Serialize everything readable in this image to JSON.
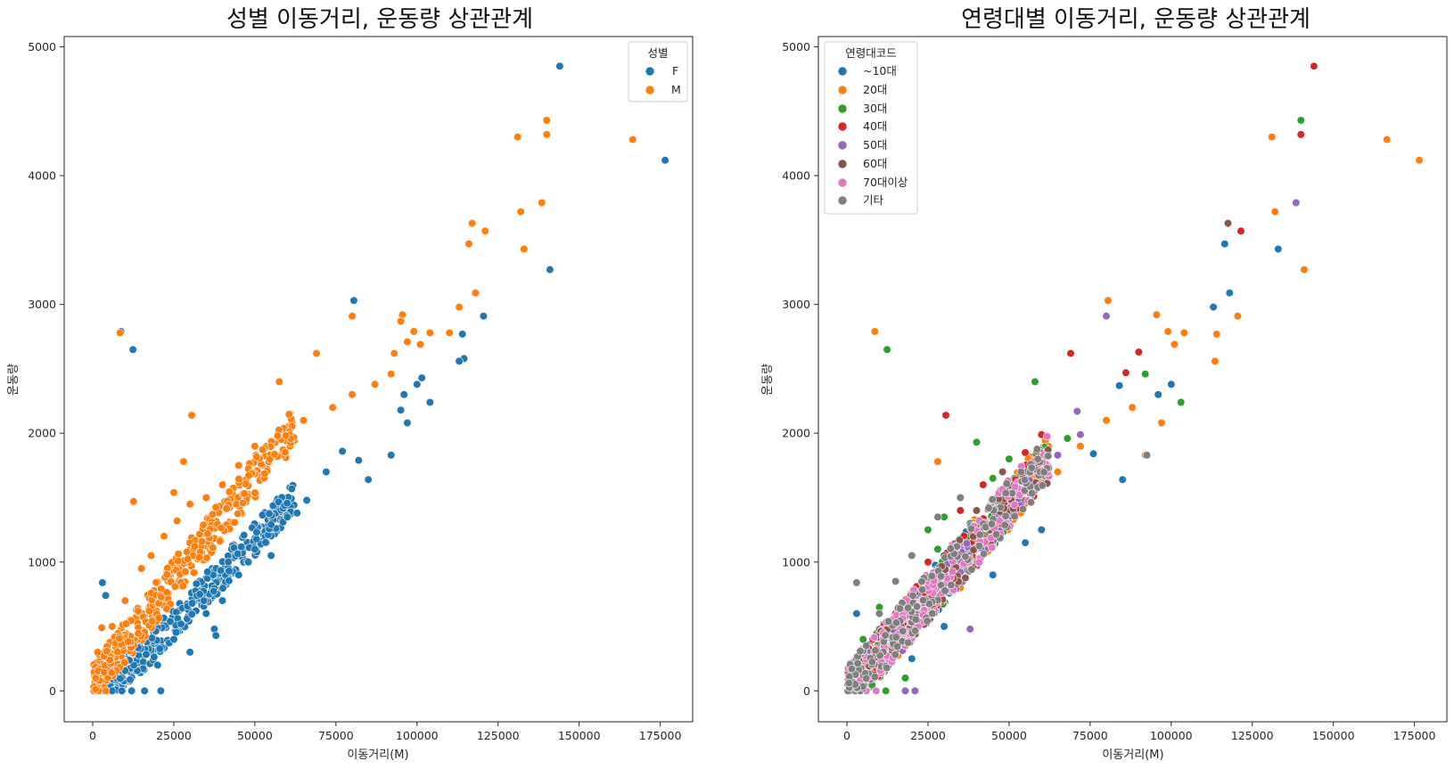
{
  "chart_data": [
    {
      "type": "scatter",
      "title": "성별 이동거리, 운동량 상관관계",
      "xlabel": "이동거리(M)",
      "ylabel": "운동량",
      "xlim": [
        -8800,
        185000
      ],
      "ylim": [
        -240,
        5080
      ],
      "xticks": [
        0,
        25000,
        50000,
        75000,
        100000,
        125000,
        150000,
        175000
      ],
      "yticks": [
        0,
        1000,
        2000,
        3000,
        4000,
        5000
      ],
      "grid": false,
      "legend": {
        "title": "성별",
        "placement": "top-right"
      },
      "series": [
        {
          "name": "F",
          "color": "#1f77b4",
          "points": [
            [
              144000,
              4850
            ],
            [
              176500,
              4120
            ],
            [
              141000,
              3270
            ],
            [
              118000,
              3090
            ],
            [
              114000,
              2770
            ],
            [
              114500,
              2580
            ],
            [
              113000,
              2560
            ],
            [
              120500,
              2910
            ],
            [
              80500,
              3030
            ],
            [
              8700,
              2790
            ],
            [
              12400,
              2650
            ],
            [
              101500,
              2430
            ],
            [
              104000,
              2240
            ],
            [
              100000,
              2380
            ],
            [
              96000,
              2300
            ],
            [
              95000,
              2180
            ],
            [
              97000,
              2080
            ],
            [
              92000,
              1830
            ],
            [
              85000,
              1640
            ],
            [
              82000,
              1790
            ],
            [
              77000,
              1860
            ],
            [
              72000,
              1700
            ],
            [
              66000,
              1480
            ],
            [
              63000,
              1380
            ],
            [
              60000,
              1350
            ],
            [
              55000,
              1290
            ],
            [
              12500,
              1470
            ],
            [
              3000,
              840
            ],
            [
              4000,
              740
            ],
            [
              16000,
              600
            ],
            [
              33000,
              750
            ],
            [
              37500,
              480
            ],
            [
              38000,
              430
            ],
            [
              16000,
              0
            ],
            [
              21000,
              0
            ],
            [
              12000,
              0
            ],
            [
              9000,
              0
            ],
            [
              6000,
              0
            ],
            [
              2000,
              0
            ],
            [
              500,
              150
            ],
            [
              30000,
              300
            ],
            [
              45000,
              900
            ],
            [
              50000,
              1100
            ],
            [
              40000,
              700
            ],
            [
              25000,
              400
            ],
            [
              20000,
              200
            ],
            [
              35000,
              600
            ],
            [
              55000,
              1050
            ],
            [
              48000,
              1000
            ]
          ]
        },
        {
          "name": "M",
          "color": "#ff7f0e",
          "points": [
            [
              131000,
              4300
            ],
            [
              140000,
              4430
            ],
            [
              140000,
              4320
            ],
            [
              166500,
              4280
            ],
            [
              138500,
              3790
            ],
            [
              132000,
              3720
            ],
            [
              133000,
              3430
            ],
            [
              117000,
              3630
            ],
            [
              116000,
              3470
            ],
            [
              121000,
              3570
            ],
            [
              118000,
              3090
            ],
            [
              113000,
              2980
            ],
            [
              95500,
              2920
            ],
            [
              95000,
              2870
            ],
            [
              99000,
              2790
            ],
            [
              104000,
              2780
            ],
            [
              110000,
              2780
            ],
            [
              97000,
              2710
            ],
            [
              101000,
              2690
            ],
            [
              93000,
              2620
            ],
            [
              80000,
              2910
            ],
            [
              69000,
              2620
            ],
            [
              57500,
              2400
            ],
            [
              30500,
              2140
            ],
            [
              8400,
              2780
            ],
            [
              12600,
              1470
            ],
            [
              25000,
              1540
            ],
            [
              2800,
              490
            ],
            [
              1500,
              300
            ],
            [
              900,
              100
            ],
            [
              4000,
              0
            ],
            [
              92000,
              2460
            ],
            [
              87000,
              2380
            ],
            [
              80000,
              2300
            ],
            [
              74000,
              2200
            ],
            [
              65000,
              2100
            ],
            [
              57000,
              1980
            ],
            [
              50000,
              1900
            ],
            [
              45000,
              1750
            ],
            [
              40000,
              1600
            ],
            [
              35000,
              1500
            ],
            [
              30000,
              1450
            ],
            [
              28000,
              1780
            ],
            [
              26000,
              1320
            ],
            [
              22000,
              1200
            ],
            [
              18000,
              1050
            ],
            [
              15000,
              950
            ],
            [
              10000,
              700
            ],
            [
              6000,
              500
            ]
          ]
        }
      ]
    },
    {
      "type": "scatter",
      "title": "연령대별 이동거리, 운동량 상관관계",
      "xlabel": "이동거리(M)",
      "ylabel": "운동량",
      "xlim": [
        -8800,
        185000
      ],
      "ylim": [
        -240,
        5080
      ],
      "xticks": [
        0,
        25000,
        50000,
        75000,
        100000,
        125000,
        150000,
        175000
      ],
      "yticks": [
        0,
        1000,
        2000,
        3000,
        4000,
        5000
      ],
      "grid": false,
      "legend": {
        "title": "연령대코드",
        "placement": "top-left"
      },
      "series": [
        {
          "name": "~10대",
          "color": "#1f77b4",
          "points": [
            [
              116500,
              3470
            ],
            [
              118000,
              3090
            ],
            [
              113000,
              2980
            ],
            [
              133000,
              3430
            ],
            [
              84000,
              2370
            ],
            [
              85000,
              1640
            ],
            [
              100000,
              2380
            ],
            [
              96000,
              2300
            ],
            [
              76000,
              1840
            ],
            [
              60000,
              1250
            ],
            [
              55000,
              1150
            ],
            [
              45000,
              900
            ],
            [
              30000,
              500
            ],
            [
              20000,
              250
            ],
            [
              3000,
              600
            ],
            [
              10000,
              300
            ]
          ]
        },
        {
          "name": "20대",
          "color": "#ff7f0e",
          "points": [
            [
              176500,
              4120
            ],
            [
              166500,
              4280
            ],
            [
              131000,
              4300
            ],
            [
              132000,
              3720
            ],
            [
              141000,
              3270
            ],
            [
              120500,
              2910
            ],
            [
              114000,
              2770
            ],
            [
              113500,
              2560
            ],
            [
              80500,
              3030
            ],
            [
              8600,
              2790
            ],
            [
              95500,
              2920
            ],
            [
              99000,
              2790
            ],
            [
              104000,
              2780
            ],
            [
              101000,
              2690
            ],
            [
              97000,
              2080
            ],
            [
              92000,
              1830
            ],
            [
              88000,
              2200
            ],
            [
              80000,
              2100
            ],
            [
              72000,
              1900
            ],
            [
              65000,
              1700
            ],
            [
              57000,
              1500
            ],
            [
              50000,
              1350
            ],
            [
              45000,
              1200
            ],
            [
              40000,
              1000
            ],
            [
              35000,
              800
            ],
            [
              28000,
              1780
            ],
            [
              25000,
              600
            ],
            [
              18000,
              400
            ]
          ]
        },
        {
          "name": "30대",
          "color": "#2ca02c",
          "points": [
            [
              140000,
              4430
            ],
            [
              12400,
              2650
            ],
            [
              103000,
              2240
            ],
            [
              92000,
              2460
            ],
            [
              58000,
              2400
            ],
            [
              40000,
              1930
            ],
            [
              68000,
              1960
            ],
            [
              50000,
              1800
            ],
            [
              45000,
              1650
            ],
            [
              35000,
              1500
            ],
            [
              30000,
              1350
            ],
            [
              25000,
              1250
            ],
            [
              20000,
              1050
            ],
            [
              15000,
              850
            ],
            [
              10000,
              650
            ],
            [
              5000,
              400
            ],
            [
              12000,
              0
            ],
            [
              18000,
              100
            ],
            [
              38000,
              1300
            ],
            [
              28000,
              1100
            ]
          ]
        },
        {
          "name": "40대",
          "color": "#d62728",
          "points": [
            [
              144000,
              4850
            ],
            [
              140000,
              4320
            ],
            [
              121500,
              3570
            ],
            [
              69000,
              2620
            ],
            [
              90000,
              2630
            ],
            [
              86000,
              2470
            ],
            [
              30500,
              2140
            ],
            [
              60000,
              1990
            ],
            [
              55000,
              1850
            ],
            [
              42000,
              1600
            ],
            [
              35000,
              1400
            ],
            [
              25000,
              1000
            ],
            [
              15000,
              600
            ],
            [
              8000,
              400
            ],
            [
              3000,
              150
            ]
          ]
        },
        {
          "name": "50대",
          "color": "#9467bd",
          "points": [
            [
              138500,
              3790
            ],
            [
              80000,
              2910
            ],
            [
              71000,
              2170
            ],
            [
              72000,
              1990
            ],
            [
              65000,
              1830
            ],
            [
              58000,
              1720
            ],
            [
              50000,
              1550
            ],
            [
              40000,
              1250
            ],
            [
              30000,
              900
            ],
            [
              38000,
              480
            ],
            [
              21000,
              0
            ],
            [
              18000,
              0
            ],
            [
              12000,
              200
            ]
          ]
        },
        {
          "name": "60대",
          "color": "#8c564b",
          "points": [
            [
              117500,
              3630
            ],
            [
              48000,
              1700
            ],
            [
              40000,
              1400
            ],
            [
              30000,
              1050
            ],
            [
              20000,
              700
            ],
            [
              10000,
              300
            ]
          ]
        },
        {
          "name": "70대이상",
          "color": "#e377c2",
          "points": [
            [
              500,
              0
            ],
            [
              2000,
              0
            ],
            [
              6000,
              0
            ],
            [
              9000,
              0
            ],
            [
              4000,
              80
            ],
            [
              15000,
              400
            ],
            [
              22000,
              500
            ]
          ]
        },
        {
          "name": "기타",
          "color": "#7f7f7f",
          "points": [
            [
              92500,
              1830
            ],
            [
              3000,
              840
            ],
            [
              1500,
              170
            ],
            [
              600,
              60
            ],
            [
              20000,
              1050
            ],
            [
              28000,
              1350
            ],
            [
              15000,
              850
            ],
            [
              10000,
              600
            ],
            [
              35000,
              1500
            ],
            [
              6000,
              350
            ]
          ]
        }
      ]
    }
  ]
}
